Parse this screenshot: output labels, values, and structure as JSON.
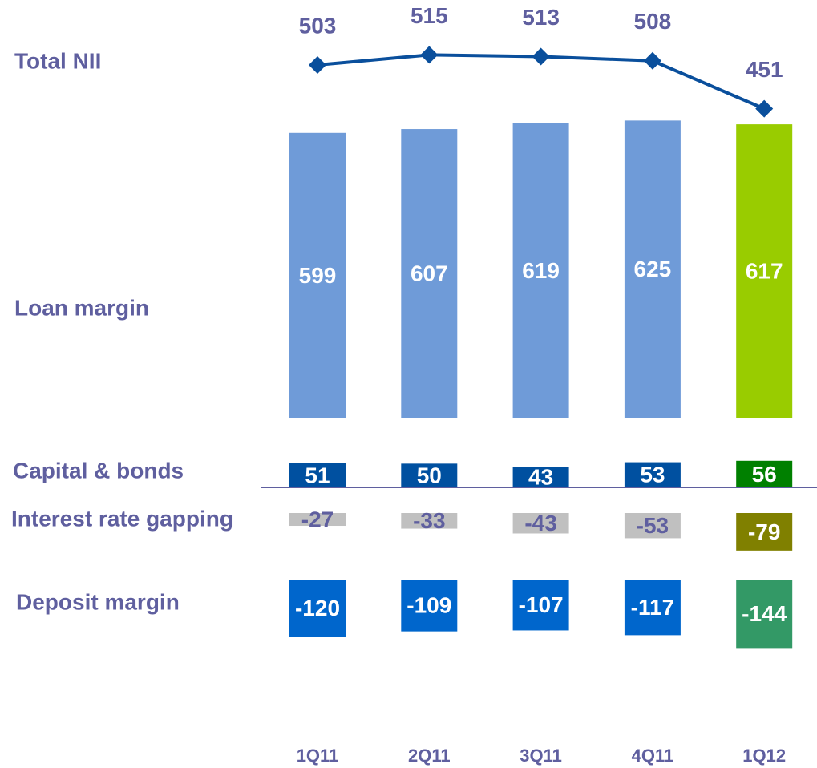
{
  "chart_data": {
    "type": "bar",
    "categories": [
      "1Q11",
      "2Q11",
      "3Q11",
      "4Q11",
      "1Q12"
    ],
    "series": [
      {
        "name": "Total NII",
        "type": "line",
        "color": "#0a4f9c",
        "values": [
          503,
          515,
          513,
          508,
          451
        ]
      },
      {
        "name": "Loan margin",
        "colors": [
          "#6f9bd8",
          "#6f9bd8",
          "#6f9bd8",
          "#6f9bd8",
          "#99cc00"
        ],
        "values": [
          599,
          607,
          619,
          625,
          617
        ]
      },
      {
        "name": "Capital & bonds",
        "colors": [
          "#0050a0",
          "#0050a0",
          "#0050a0",
          "#0050a0",
          "#008000"
        ],
        "values": [
          51,
          50,
          43,
          53,
          56
        ]
      },
      {
        "name": "Interest rate gapping",
        "colors": [
          "#c0c0c0",
          "#c0c0c0",
          "#c0c0c0",
          "#c0c0c0",
          "#808000"
        ],
        "values": [
          -27,
          -33,
          -43,
          -53,
          -79
        ]
      },
      {
        "name": "Deposit margin",
        "colors": [
          "#0066cc",
          "#0066cc",
          "#0066cc",
          "#0066cc",
          "#339966"
        ],
        "values": [
          -120,
          -109,
          -107,
          -117,
          -144
        ]
      }
    ]
  }
}
